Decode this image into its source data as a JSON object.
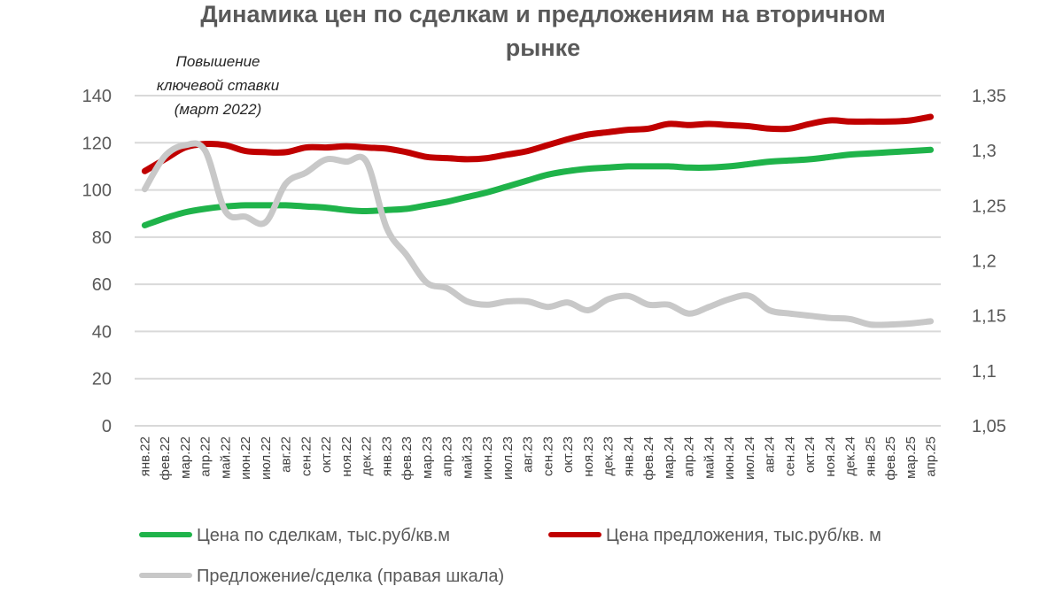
{
  "chart_data": {
    "type": "line",
    "title_lines": [
      "Динамика цен по сделкам и предложениям на вторичном",
      "рынке"
    ],
    "annotation_lines": [
      "Повышение",
      "ключевой ставки",
      "(март 2022)"
    ],
    "categories": [
      "янв.22",
      "фев.22",
      "мар.22",
      "апр.22",
      "май.22",
      "июн.22",
      "июл.22",
      "авг.22",
      "сен.22",
      "окт.22",
      "ноя.22",
      "дек.22",
      "янв.23",
      "фев.23",
      "мар.23",
      "апр.23",
      "май.23",
      "июн.23",
      "июл.23",
      "авг.23",
      "сен.23",
      "окт.23",
      "ноя.23",
      "дек.23",
      "янв.24",
      "фев.24",
      "мар.24",
      "апр.24",
      "май.24",
      "июн.24",
      "июл.24",
      "авг.24",
      "сен.24",
      "окт.24",
      "ноя.24",
      "дек.24",
      "янв.25",
      "фев.25",
      "мар.25",
      "апр.25"
    ],
    "y_left": {
      "min": 0,
      "max": 140,
      "ticks": [
        "0",
        "20",
        "40",
        "60",
        "80",
        "100",
        "120",
        "140"
      ],
      "tick_values": [
        0,
        20,
        40,
        60,
        80,
        100,
        120,
        140
      ]
    },
    "y_right": {
      "min": 1.05,
      "max": 1.35,
      "ticks": [
        "1,05",
        "1,1",
        "1,15",
        "1,2",
        "1,25",
        "1,3",
        "1,35"
      ],
      "tick_values": [
        1.05,
        1.1,
        1.15,
        1.2,
        1.25,
        1.3,
        1.35
      ]
    },
    "grid": true,
    "legend_position": "bottom",
    "series": [
      {
        "name": "Цена по сделкам, тыс.руб/кв.м",
        "axis": "left",
        "color": "#1fb34a",
        "values": [
          85,
          88,
          90.5,
          92,
          93,
          93.5,
          93.5,
          93.5,
          93,
          92.5,
          91.5,
          91,
          91.5,
          92,
          93.5,
          95,
          97,
          99,
          101.5,
          104,
          106.5,
          108,
          109,
          109.5,
          110,
          110,
          110,
          109.5,
          109.5,
          110,
          111,
          112,
          112.5,
          113,
          114,
          115,
          115.5,
          116,
          116.5,
          117
        ]
      },
      {
        "name": "Цена предложения, тыс.руб/кв. м",
        "axis": "left",
        "color": "#c00000",
        "values": [
          108,
          113,
          118,
          119.5,
          119,
          116.5,
          116,
          116,
          118,
          118,
          118.5,
          118,
          117.5,
          116,
          114,
          113.5,
          113,
          113.5,
          115,
          116.5,
          119,
          121.5,
          123.5,
          124.5,
          125.5,
          126,
          128,
          127.5,
          128,
          127.5,
          127,
          126,
          126,
          128,
          129.5,
          129,
          129,
          129,
          129.5,
          131
        ]
      },
      {
        "name": "Предложение/сделка (правая шкала)",
        "axis": "right",
        "color": "#c8c8c8",
        "values": [
          1.265,
          1.295,
          1.305,
          1.3,
          1.245,
          1.24,
          1.235,
          1.27,
          1.28,
          1.292,
          1.29,
          1.29,
          1.23,
          1.205,
          1.18,
          1.175,
          1.163,
          1.16,
          1.163,
          1.163,
          1.158,
          1.162,
          1.155,
          1.165,
          1.168,
          1.16,
          1.16,
          1.152,
          1.158,
          1.165,
          1.168,
          1.155,
          1.152,
          1.15,
          1.148,
          1.147,
          1.142,
          1.142,
          1.143,
          1.145
        ]
      }
    ]
  }
}
